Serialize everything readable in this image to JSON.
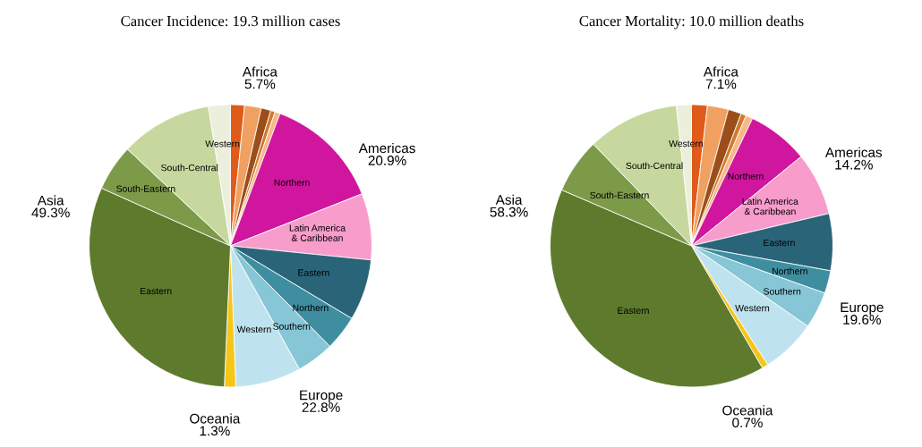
{
  "chart_data": [
    {
      "type": "pie",
      "title": "Cancer Incidence: 19.3 million cases",
      "categories": [
        null,
        null,
        null,
        null,
        null,
        "Northern",
        "Latin America\n& Caribbean",
        "Eastern",
        "Northern",
        "Southern",
        "Western",
        null,
        "Eastern",
        "South-Eastern",
        "South-Central",
        "Western"
      ],
      "values": [
        1.6,
        1.9,
        1.1,
        0.5,
        0.6,
        13.3,
        7.6,
        7.0,
        4.0,
        4.3,
        7.5,
        1.3,
        31.0,
        5.3,
        10.5,
        2.5
      ],
      "colors": [
        "#e05a1a",
        "#f0a060",
        "#9c4e1a",
        "#d07a30",
        "#f8b888",
        "#d0169e",
        "#f79ccb",
        "#2a6478",
        "#3f8ea0",
        "#86c6d6",
        "#bfe3ee",
        "#f5c518",
        "#5e7a2c",
        "#7d9a49",
        "#c7d89f",
        "#ecefdc"
      ],
      "annotations": [
        "Africa\n5.7%",
        "Americas\n20.9%",
        "Europe\n22.8%",
        "Oceania\n1.3%",
        "Asia\n49.3%"
      ]
    },
    {
      "type": "pie",
      "title": "Cancer Mortality: 10.0 million deaths",
      "categories": [
        null,
        null,
        null,
        null,
        null,
        "Northern",
        "Latin America\n& Caribbean",
        "Eastern",
        "Northern",
        "Southern",
        "Western",
        null,
        "Eastern",
        "South-Eastern",
        "South-Central",
        "Western"
      ],
      "values": [
        1.8,
        2.4,
        1.5,
        0.6,
        0.8,
        7.0,
        7.2,
        6.5,
        2.6,
        4.2,
        6.3,
        0.7,
        39.8,
        6.3,
        10.5,
        1.7
      ],
      "colors": [
        "#e05a1a",
        "#f0a060",
        "#9c4e1a",
        "#d07a30",
        "#f8b888",
        "#d0169e",
        "#f79ccb",
        "#2a6478",
        "#3f8ea0",
        "#86c6d6",
        "#bfe3ee",
        "#f5c518",
        "#5e7a2c",
        "#7d9a49",
        "#c7d89f",
        "#ecefdc"
      ],
      "annotations": [
        "Africa\n7.1%",
        "Americas\n14.2%",
        "Europe\n19.6%",
        "Oceania\n0.7%",
        "Asia\n58.3%"
      ]
    }
  ]
}
